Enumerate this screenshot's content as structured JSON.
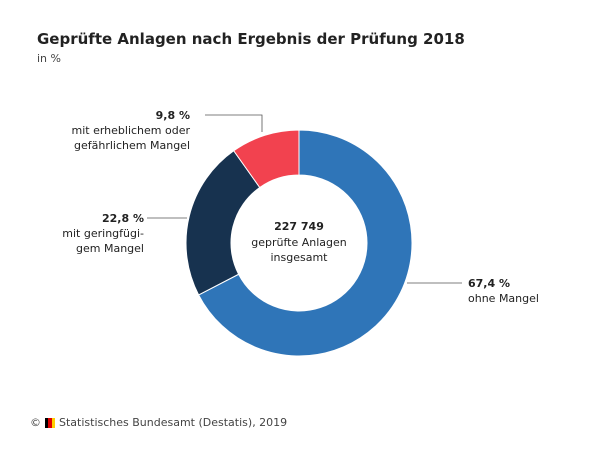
{
  "header": {
    "title": "Geprüfte Anlagen nach Ergebnis der Prüfung 2018",
    "subtitle": "in %"
  },
  "chart_data": {
    "type": "pie",
    "variant": "donut",
    "title": "Geprüfte Anlagen nach Ergebnis der Prüfung 2018",
    "unit": "%",
    "center_value": "227 749",
    "center_text_lines": [
      "geprüfte Anlagen",
      "insgesamt"
    ],
    "slices": [
      {
        "name": "ohne Mangel",
        "value": 67.4,
        "value_label": "67,4 %",
        "label_lines": [
          "ohne Mangel"
        ],
        "color": "#2f75b8"
      },
      {
        "name": "mit geringfügigem Mangel",
        "value": 22.8,
        "value_label": "22,8 %",
        "label_lines": [
          "mit geringfügi-",
          "gem Mangel"
        ],
        "color": "#17324f"
      },
      {
        "name": "mit erheblichem oder gefährlichem Mangel",
        "value": 9.8,
        "value_label": "9,8 %",
        "label_lines": [
          "mit erheblichem oder",
          "gefährlichem Mangel"
        ],
        "color": "#f2424f"
      }
    ]
  },
  "footer": {
    "copyright": "©",
    "source": "Statistisches Bundesamt (Destatis), 2019",
    "flag_colors": [
      "#000000",
      "#dd0000",
      "#ffce00"
    ]
  }
}
